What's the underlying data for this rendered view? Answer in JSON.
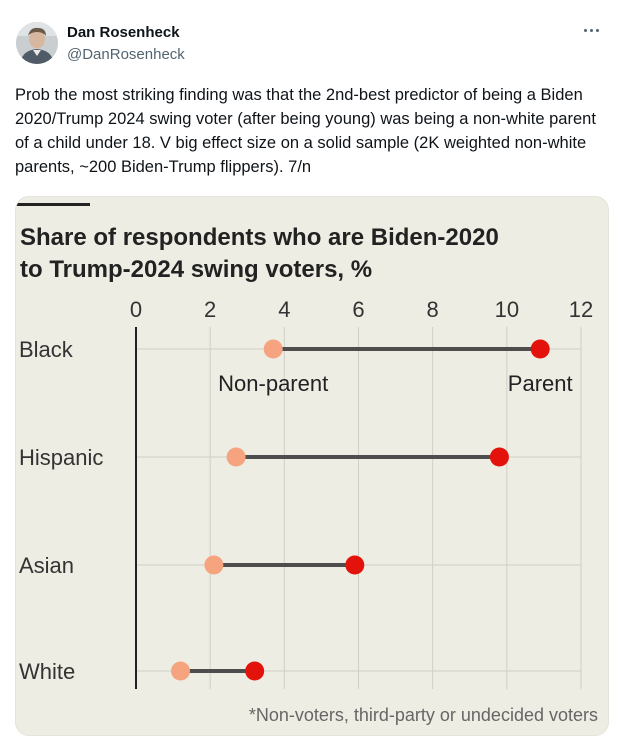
{
  "author": {
    "name": "Dan Rosenheck",
    "handle": "@DanRosenheck"
  },
  "tweet": {
    "text": "Prob the most striking finding was that the 2nd-best predictor of being a Biden 2020/Trump 2024 swing voter (after being young) was being a non-white parent of a child under 18. V big effect size on a solid sample (2K weighted non-white parents, ~200 Biden-Trump flippers). 7/n"
  },
  "icons": {
    "more": "more-horizontal-icon",
    "avatar": "profile-photo"
  },
  "colors": {
    "card_background": "#eeede3",
    "non_parent": "#f5a47f",
    "parent": "#e3120b",
    "connector": "#4d4d4d"
  },
  "chart_data": {
    "type": "dumbbell",
    "title": "Share of respondents who are Biden-2020 to Trump-2024 swing voters, %",
    "title_lines": [
      "Share of respondents who are Biden-2020",
      "to Trump-2024 swing voters, %"
    ],
    "footnote": "*Non-voters, third-party or undecided voters",
    "xlim": [
      0,
      12
    ],
    "x_ticks": [
      0,
      2,
      4,
      6,
      8,
      10,
      12
    ],
    "x_tick_labels": [
      "0",
      "2",
      "4",
      "6",
      "8",
      "10",
      "12"
    ],
    "categories": [
      "Black",
      "Hispanic",
      "Asian",
      "White"
    ],
    "series": [
      {
        "name": "Non-parent",
        "values": [
          3.7,
          2.7,
          2.1,
          1.2
        ]
      },
      {
        "name": "Parent",
        "values": [
          10.9,
          9.8,
          5.9,
          3.2
        ]
      }
    ],
    "legend": {
      "placement": "inline-below-first-row"
    },
    "grid": true
  }
}
